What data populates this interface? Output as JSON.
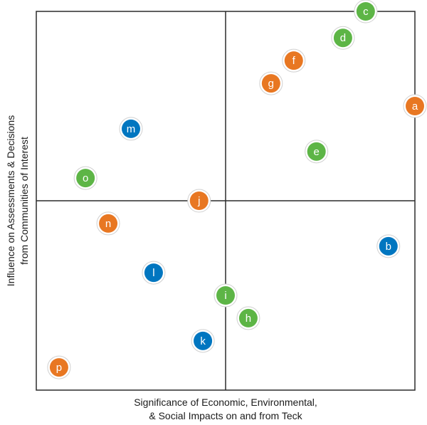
{
  "chart_data": {
    "type": "scatter",
    "title": "",
    "xlabel_lines": [
      "Significance of Economic, Environmental,",
      "& Social Impacts on and from Teck"
    ],
    "ylabel_lines": [
      "Influence on Assessments & Decisions",
      "from Communities of Interest"
    ],
    "xlim": [
      0,
      100
    ],
    "ylim": [
      0,
      100
    ],
    "grid": "quadrants",
    "legend": "none",
    "colors": {
      "orange": "#e87722",
      "green": "#5db546",
      "blue": "#0076c0"
    },
    "points": [
      {
        "label": "a",
        "x": 100,
        "y": 75,
        "color": "orange"
      },
      {
        "label": "b",
        "x": 93,
        "y": 38,
        "color": "blue"
      },
      {
        "label": "c",
        "x": 87,
        "y": 100,
        "color": "green"
      },
      {
        "label": "d",
        "x": 81,
        "y": 93,
        "color": "green"
      },
      {
        "label": "e",
        "x": 74,
        "y": 63,
        "color": "green"
      },
      {
        "label": "f",
        "x": 68,
        "y": 87,
        "color": "orange"
      },
      {
        "label": "g",
        "x": 62,
        "y": 81,
        "color": "orange"
      },
      {
        "label": "h",
        "x": 56,
        "y": 19,
        "color": "green"
      },
      {
        "label": "i",
        "x": 50,
        "y": 25,
        "color": "green"
      },
      {
        "label": "j",
        "x": 43,
        "y": 50,
        "color": "orange"
      },
      {
        "label": "k",
        "x": 44,
        "y": 13,
        "color": "blue"
      },
      {
        "label": "l",
        "x": 31,
        "y": 31,
        "color": "blue"
      },
      {
        "label": "m",
        "x": 25,
        "y": 69,
        "color": "blue"
      },
      {
        "label": "n",
        "x": 19,
        "y": 44,
        "color": "orange"
      },
      {
        "label": "o",
        "x": 13,
        "y": 56,
        "color": "green"
      },
      {
        "label": "p",
        "x": 6,
        "y": 6,
        "color": "orange"
      }
    ]
  }
}
